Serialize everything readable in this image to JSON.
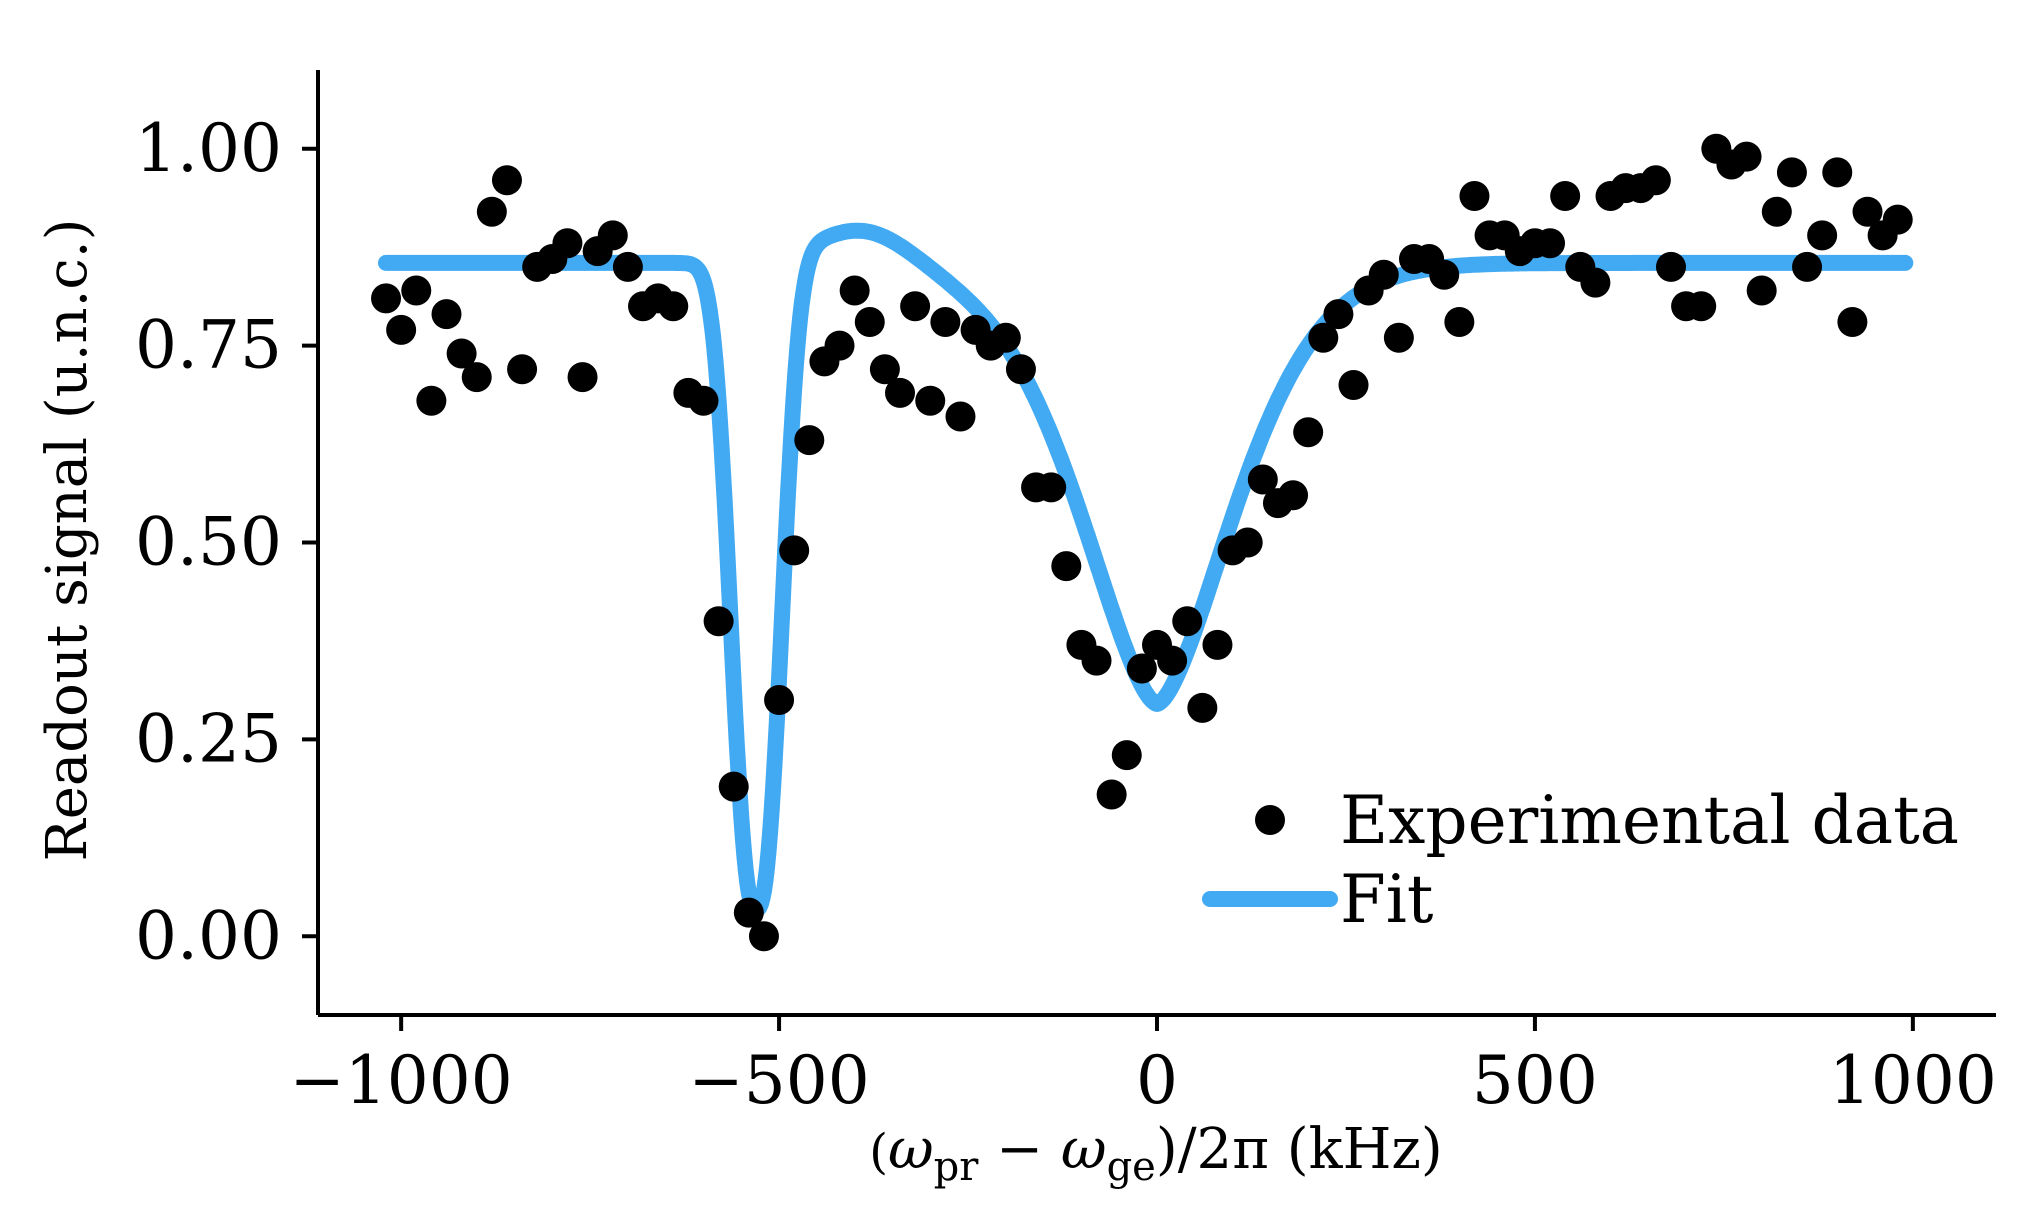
{
  "chart_data": {
    "type": "scatter",
    "xlabel": "(ω_pr − ω_ge)/2π (kHz)",
    "xlabel_parts": [
      "(",
      "ω",
      "pr",
      " − ",
      "ω",
      "ge",
      ")/2π",
      " (kHz)"
    ],
    "ylabel": "Readout signal (u.n.c.)",
    "xlim": [
      -1110,
      1110
    ],
    "ylim": [
      -0.1,
      1.1
    ],
    "xticks": [
      -1000,
      -500,
      0,
      500,
      1000
    ],
    "xtick_labels": [
      "−1000",
      "−500",
      "0",
      "500",
      "1000"
    ],
    "yticks": [
      0.0,
      0.25,
      0.5,
      0.75,
      1.0
    ],
    "ytick_labels": [
      "0.00",
      "0.25",
      "0.50",
      "0.75",
      "1.00"
    ],
    "grid": false,
    "legend_position": "bottom-right",
    "colors": {
      "data": "#000000",
      "fit": "#42aaf2",
      "axis": "#000000"
    },
    "series": [
      {
        "name": "Experimental data",
        "kind": "scatter",
        "x": [
          -1020,
          -1000,
          -980,
          -960,
          -940,
          -920,
          -900,
          -880,
          -860,
          -840,
          -820,
          -800,
          -780,
          -760,
          -740,
          -720,
          -700,
          -680,
          -660,
          -640,
          -620,
          -600,
          -580,
          -560,
          -540,
          -520,
          -500,
          -480,
          -460,
          -440,
          -420,
          -400,
          -380,
          -360,
          -340,
          -320,
          -300,
          -280,
          -260,
          -240,
          -220,
          -200,
          -180,
          -160,
          -140,
          -120,
          -100,
          -80,
          -60,
          -40,
          -20,
          0,
          20,
          40,
          60,
          80,
          100,
          120,
          140,
          160,
          180,
          200,
          220,
          240,
          260,
          280,
          300,
          320,
          340,
          360,
          380,
          400,
          420,
          440,
          460,
          480,
          500,
          520,
          540,
          560,
          580,
          600,
          620,
          640,
          660,
          680,
          700,
          720,
          740,
          760,
          780,
          800,
          820,
          840,
          860,
          880,
          900,
          920,
          940,
          960,
          980
        ],
        "y": [
          0.81,
          0.77,
          0.82,
          0.68,
          0.79,
          0.74,
          0.71,
          0.92,
          0.96,
          0.72,
          0.85,
          0.86,
          0.88,
          0.71,
          0.87,
          0.89,
          0.85,
          0.8,
          0.81,
          0.8,
          0.69,
          0.68,
          0.4,
          0.19,
          0.03,
          0.0,
          0.3,
          0.49,
          0.63,
          0.73,
          0.75,
          0.82,
          0.78,
          0.72,
          0.69,
          0.8,
          0.68,
          0.78,
          0.66,
          0.77,
          0.75,
          0.76,
          0.72,
          0.57,
          0.57,
          0.47,
          0.37,
          0.35,
          0.18,
          0.23,
          0.34,
          0.37,
          0.35,
          0.4,
          0.29,
          0.37,
          0.49,
          0.5,
          0.58,
          0.55,
          0.56,
          0.64,
          0.76,
          0.79,
          0.7,
          0.82,
          0.84,
          0.76,
          0.86,
          0.86,
          0.84,
          0.78,
          0.94,
          0.89,
          0.89,
          0.87,
          0.88,
          0.88,
          0.94,
          0.85,
          0.83,
          0.94,
          0.95,
          0.95,
          0.96,
          0.85,
          0.8,
          0.8,
          1.0,
          0.98,
          0.99,
          0.82,
          0.92,
          0.97,
          0.85,
          0.89,
          0.97,
          0.78,
          0.92,
          0.89,
          0.91
        ]
      },
      {
        "name": "Fit",
        "kind": "line",
        "baseline": 0.855,
        "dips": [
          {
            "center": -530,
            "depth": 0.825,
            "sigma": 42,
            "order": 2.5
          },
          {
            "center": 0,
            "depth": 0.56,
            "sigma": 145,
            "order": 1.6
          }
        ],
        "asymmetry": {
          "center": -390,
          "amplitude": -0.045,
          "width": 90
        },
        "x_range": [
          -1020,
          990
        ]
      }
    ],
    "legend": [
      {
        "label": "Experimental data",
        "marker": "dot"
      },
      {
        "label": "Fit",
        "marker": "line"
      }
    ]
  }
}
